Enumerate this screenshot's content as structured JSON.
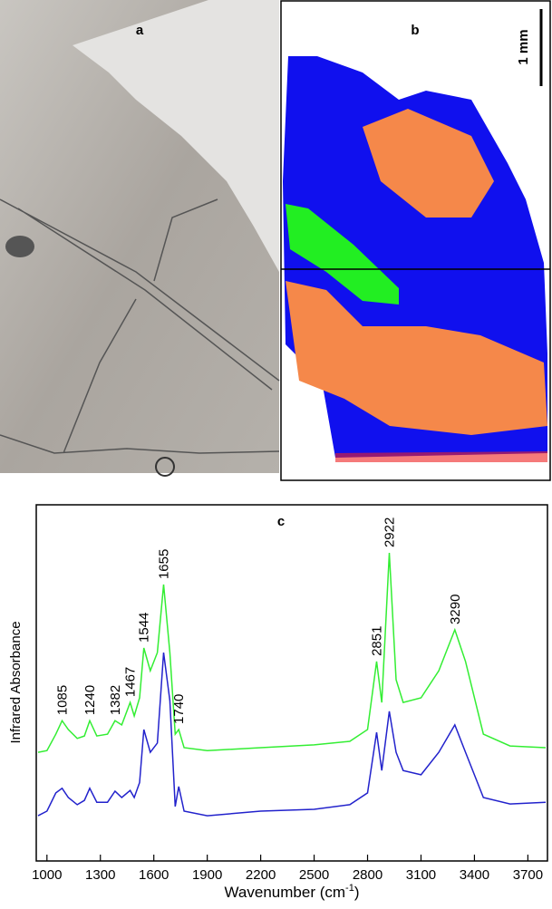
{
  "panel_a": {
    "label": "a"
  },
  "panel_b": {
    "label": "b",
    "scale_bar": "1 mm"
  },
  "chart_data": {
    "type": "line",
    "title": "c",
    "ylabel": "Infrared Absorbance",
    "xlabel": "Wavenumber (cm",
    "xlabel_sup": "-1",
    "xlabel_end": ")",
    "x": [
      950,
      1000,
      1050,
      1085,
      1120,
      1170,
      1210,
      1240,
      1280,
      1340,
      1382,
      1420,
      1467,
      1490,
      1520,
      1544,
      1580,
      1620,
      1655,
      1690,
      1720,
      1740,
      1770,
      1900,
      2200,
      2500,
      2700,
      2800,
      2851,
      2880,
      2922,
      2960,
      3000,
      3100,
      3200,
      3290,
      3350,
      3450,
      3600,
      3800
    ],
    "series": [
      {
        "color": "#33ee33",
        "values": [
          0.305,
          0.31,
          0.356,
          0.394,
          0.369,
          0.344,
          0.351,
          0.394,
          0.351,
          0.356,
          0.394,
          0.382,
          0.445,
          0.407,
          0.458,
          0.598,
          0.534,
          0.585,
          0.776,
          0.585,
          0.356,
          0.369,
          0.318,
          0.31,
          0.318,
          0.326,
          0.336,
          0.369,
          0.56,
          0.445,
          0.865,
          0.509,
          0.445,
          0.458,
          0.534,
          0.649,
          0.56,
          0.356,
          0.323,
          0.318
        ]
      },
      {
        "color": "#2222cc",
        "values": [
          0.127,
          0.14,
          0.191,
          0.204,
          0.178,
          0.158,
          0.17,
          0.204,
          0.165,
          0.165,
          0.196,
          0.178,
          0.198,
          0.178,
          0.22,
          0.369,
          0.305,
          0.331,
          0.585,
          0.45,
          0.153,
          0.209,
          0.14,
          0.127,
          0.14,
          0.145,
          0.158,
          0.191,
          0.361,
          0.254,
          0.42,
          0.305,
          0.254,
          0.242,
          0.305,
          0.382,
          0.305,
          0.178,
          0.16,
          0.165
        ]
      }
    ],
    "peaks": [
      1085,
      1240,
      1382,
      1467,
      1544,
      1655,
      1740,
      2851,
      2922,
      3290
    ],
    "xlim": [
      940,
      3810
    ],
    "ylim": [
      0,
      1
    ],
    "xticks": [
      1000,
      1300,
      1600,
      1900,
      2200,
      2500,
      2800,
      3100,
      3400,
      3700
    ]
  }
}
